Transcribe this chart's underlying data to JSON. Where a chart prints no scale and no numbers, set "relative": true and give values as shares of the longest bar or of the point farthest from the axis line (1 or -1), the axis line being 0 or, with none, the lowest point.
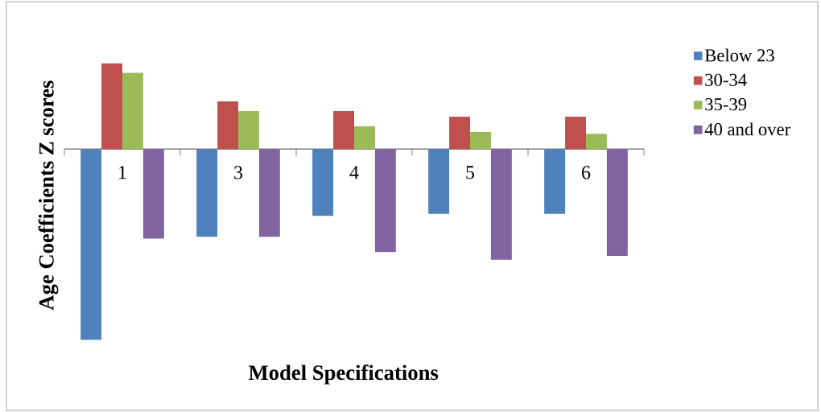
{
  "chart_data": {
    "type": "bar",
    "relative": true,
    "xlabel": "Model Specifications",
    "ylabel": "Age Coefficients Z scores",
    "categories": [
      "1",
      "3",
      "4",
      "5",
      "6"
    ],
    "series": [
      {
        "name": "Below 23",
        "color": "#4f81bd",
        "values": [
          -1,
          -0.46,
          -0.35,
          -0.34,
          -0.34
        ]
      },
      {
        "name": "30-34",
        "color": "#c0504d",
        "values": [
          0.45,
          0.25,
          0.2,
          0.17,
          0.17
        ]
      },
      {
        "name": "35-39",
        "color": "#9bbb59",
        "values": [
          0.4,
          0.2,
          0.12,
          0.09,
          0.08
        ]
      },
      {
        "name": "40 and over",
        "color": "#8064a2",
        "values": [
          -0.47,
          -0.46,
          -0.54,
          -0.58,
          -0.56
        ]
      }
    ],
    "legend": "right"
  }
}
